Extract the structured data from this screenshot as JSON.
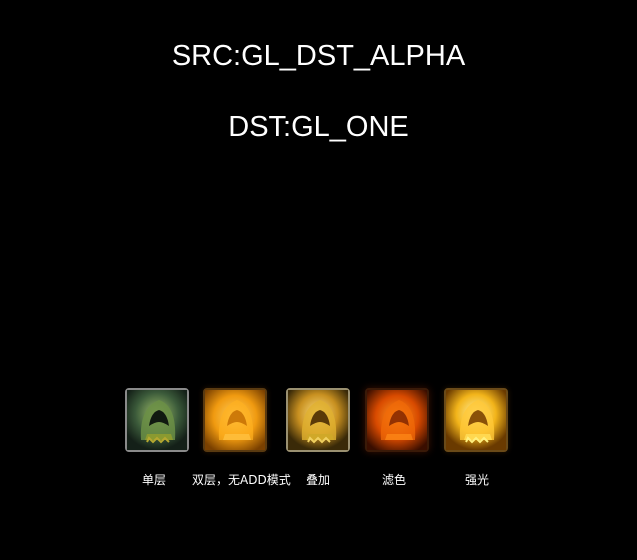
{
  "header": {
    "src_line": "SRC:GL_DST_ALPHA",
    "dst_line": "DST:GL_ONE"
  },
  "icons": [
    {
      "label": "单层",
      "icon": "hooded-figure-icon",
      "variant": "single-layer",
      "tint": "#3f5a40"
    },
    {
      "label": "双层，无ADD模式",
      "icon": "hooded-figure-icon",
      "variant": "double-layer-no-add",
      "tint": "#f0a010"
    },
    {
      "label": "叠加",
      "icon": "hooded-figure-icon",
      "variant": "overlay",
      "tint": "#d8a020"
    },
    {
      "label": "滤色",
      "icon": "hooded-figure-icon",
      "variant": "screen",
      "tint": "#e85a05"
    },
    {
      "label": "强光",
      "icon": "hooded-figure-icon",
      "variant": "hard-light",
      "tint": "#f2b81a"
    }
  ]
}
